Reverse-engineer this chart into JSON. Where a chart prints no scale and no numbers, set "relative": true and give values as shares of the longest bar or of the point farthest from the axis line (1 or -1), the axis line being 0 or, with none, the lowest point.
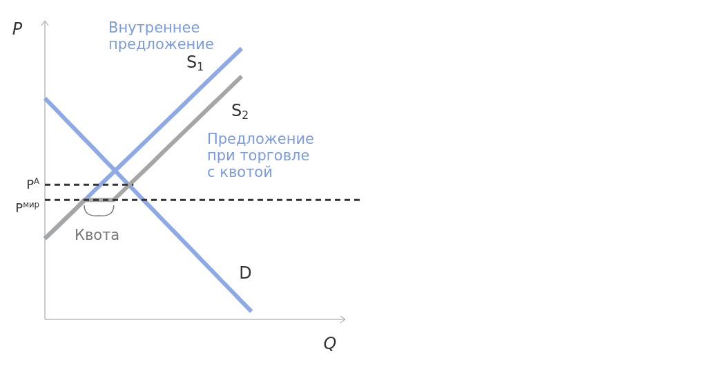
{
  "chart_data": {
    "type": "line",
    "relative": true,
    "xlabel": "Q",
    "ylabel": "P",
    "categories": [
      null,
      null,
      null,
      null,
      null,
      null,
      null,
      null,
      null,
      null,
      null,
      null,
      null,
      null,
      null,
      null,
      null,
      null,
      null,
      null,
      null,
      null,
      null,
      null,
      null,
      null,
      null,
      null,
      null,
      null,
      null,
      null,
      null
    ],
    "series": [
      {
        "name": "D",
        "color": "#8eaae6",
        "values": [
          0.816,
          0.779,
          0.741,
          0.704,
          0.666,
          0.629,
          0.591,
          0.554,
          0.516,
          0.479,
          0.441,
          0.404,
          0.366,
          0.329,
          0.291,
          0.254,
          0.216,
          0.179,
          0.141,
          0.104,
          0.066,
          0.029,
          null,
          null,
          null,
          null,
          null,
          null,
          null,
          null,
          null,
          null,
          null
        ]
      },
      {
        "name": "S$_{1}$",
        "color": "#8eaae6",
        "values": [
          0.298,
          0.333,
          0.368,
          0.403,
          0.438,
          0.474,
          0.509,
          0.544,
          0.579,
          0.614,
          0.649,
          0.684,
          0.719,
          0.754,
          0.789,
          0.825,
          0.86,
          0.895,
          0.93,
          0.965,
          1.0,
          null,
          null,
          null,
          null,
          null,
          null,
          null,
          null,
          null,
          null,
          null,
          null
        ]
      },
      {
        "name": "S$_{2}$",
        "color": "#a6a6a6",
        "values": [
          0.298,
          0.333,
          0.368,
          0.403,
          0.441,
          0.441,
          0.441,
          0.441,
          0.476,
          0.511,
          0.546,
          0.581,
          0.617,
          0.652,
          0.687,
          0.722,
          0.757,
          0.792,
          0.827,
          0.862,
          0.897,
          null,
          null,
          null,
          null,
          null,
          null,
          null,
          null,
          null,
          null,
          null,
          null
        ]
      },
      {
        "name": "P$^{А}$",
        "color": "#333333",
        "line_style": "dashed",
        "values": [
          0.497,
          0.497,
          0.497,
          0.497,
          0.497,
          0.497,
          0.497,
          0.497,
          0.497,
          0.497,
          null,
          null,
          null,
          null,
          null,
          null,
          null,
          null,
          null,
          null,
          null,
          null,
          null,
          null,
          null,
          null,
          null,
          null,
          null,
          null,
          null,
          null,
          null
        ]
      },
      {
        "name": "P$^{мир}$",
        "color": "#333333",
        "line_style": "dashed",
        "values": [
          0.441,
          0.441,
          0.441,
          0.441,
          0.441,
          0.441,
          0.441,
          0.441,
          0.441,
          0.441,
          0.441,
          0.441,
          0.441,
          0.441,
          0.441,
          0.441,
          0.441,
          0.441,
          0.441,
          0.441,
          0.441,
          0.441,
          0.441,
          0.441,
          0.441,
          0.441,
          0.441,
          0.441,
          0.441,
          0.441,
          0.441,
          0.441,
          0.441
        ]
      }
    ],
    "annotations": [
      "Внутреннее предложение",
      "Предложение при торговле с квотой",
      "Квота"
    ]
  }
}
